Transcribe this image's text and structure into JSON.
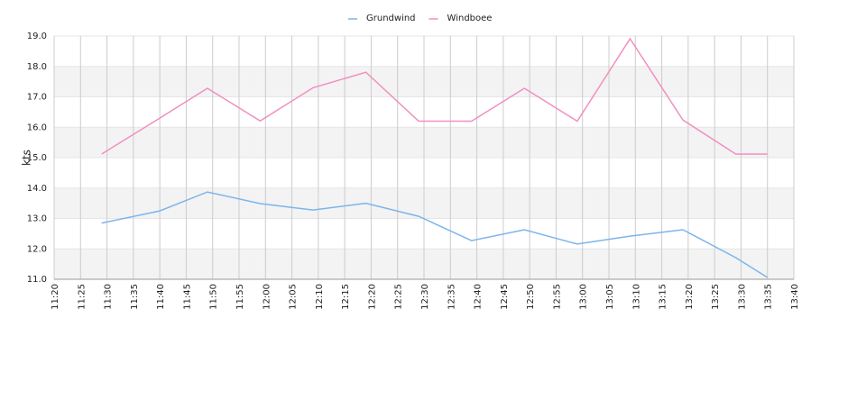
{
  "chart_data": {
    "type": "line",
    "y_label": "kts",
    "x": [
      "11:29",
      "11:40",
      "11:49",
      "11:59",
      "12:09",
      "12:19",
      "12:29",
      "12:39",
      "12:49",
      "12:59",
      "13:09",
      "13:19",
      "13:29",
      "13:35"
    ],
    "series": [
      {
        "name": "Grundwind",
        "color": "#7cb5ec",
        "values": [
          12.85,
          13.25,
          13.87,
          13.49,
          13.28,
          13.5,
          13.07,
          12.27,
          12.63,
          12.16,
          12.42,
          12.63,
          11.71,
          11.06
        ]
      },
      {
        "name": "Windboee",
        "color": "#f28fc0",
        "values": [
          15.12,
          16.3,
          17.28,
          16.21,
          17.3,
          17.81,
          16.2,
          16.2,
          17.28,
          16.2,
          18.91,
          16.24,
          15.12,
          15.12
        ]
      }
    ],
    "xlim": [
      "11:20",
      "13:40"
    ],
    "xticks": [
      "11:20",
      "11:25",
      "11:30",
      "11:35",
      "11:40",
      "11:45",
      "11:50",
      "11:55",
      "12:00",
      "12:05",
      "12:10",
      "12:15",
      "12:20",
      "12:25",
      "12:30",
      "12:35",
      "12:40",
      "12:45",
      "12:50",
      "12:55",
      "13:00",
      "13:05",
      "13:10",
      "13:15",
      "13:20",
      "13:25",
      "13:30",
      "13:35",
      "13:40"
    ],
    "ylim": [
      11,
      19
    ],
    "yticks": [
      {
        "value": 11,
        "label": "11.0"
      },
      {
        "value": 12,
        "label": "12.0"
      },
      {
        "value": 13,
        "label": "13.0"
      },
      {
        "value": 14,
        "label": "14.0"
      },
      {
        "value": 15,
        "label": "15.0"
      },
      {
        "value": 16,
        "label": "16.0"
      },
      {
        "value": 17,
        "label": "17.0"
      },
      {
        "value": 18,
        "label": "18.0"
      },
      {
        "value": 19,
        "label": "19.0"
      }
    ],
    "grid": true,
    "legend": "top"
  }
}
